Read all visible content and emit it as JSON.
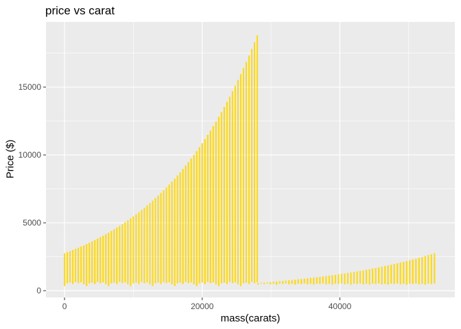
{
  "chart_data": {
    "type": "bar",
    "title": "price vs carat",
    "xlabel": "mass(carats)",
    "ylabel": "Price ($)",
    "xlim": [
      -2700,
      56700
    ],
    "ylim": [
      -500,
      19800
    ],
    "x_ticks": [
      0,
      20000,
      40000
    ],
    "x_tick_labels": [
      "0",
      "20000",
      "40000"
    ],
    "y_ticks": [
      0,
      5000,
      10000,
      15000
    ],
    "y_tick_labels": [
      "0",
      "5000",
      "10000",
      "15000"
    ],
    "grid": true,
    "legend": "none",
    "bar_color": "#FFD700",
    "panel_background": "#EBEBEB",
    "series": [
      {
        "segments": [
          {
            "x_start": 0,
            "x_end": 27800,
            "step": 400,
            "top_start": 2750,
            "top_end": 18800,
            "top_growth": 1.0,
            "bottom_pattern": [
              350,
              550,
              600,
              500,
              650,
              560,
              620,
              480
            ]
          },
          {
            "x_start": 28100,
            "x_end": 53900,
            "step": 450,
            "top_start": 550,
            "top_end": 2750,
            "top_growth": 0.7,
            "bottom_pattern": [
              450,
              520,
              500,
              540,
              480,
              510
            ]
          }
        ]
      }
    ]
  }
}
